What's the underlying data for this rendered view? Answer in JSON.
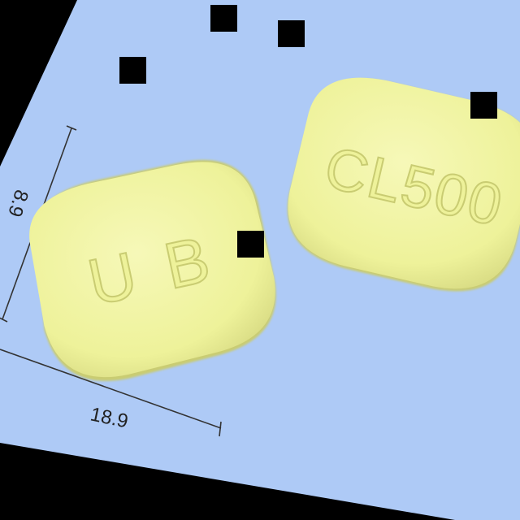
{
  "photo": {
    "background_color": "#aecaf6",
    "frame_color": "#000000",
    "tablet_color": "#eef29a",
    "tablet_shadow_color": "#c9cc72",
    "imprint_color": "#d7db7c",
    "tablet_left_imprint": "U B",
    "tablet_right_imprint": "CL500",
    "width_label": "18.9",
    "height_label": "8.9"
  }
}
